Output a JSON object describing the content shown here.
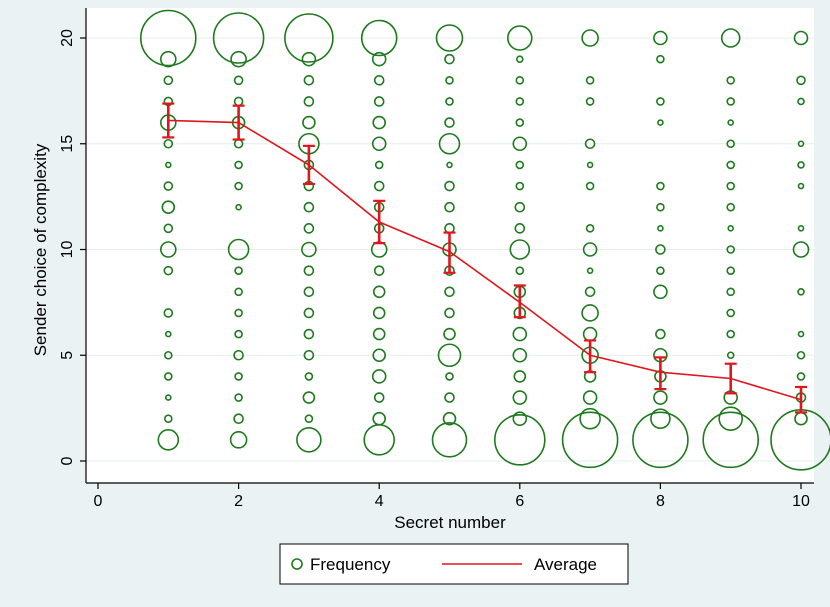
{
  "chart_data": {
    "type": "scatter",
    "title": "",
    "xlabel": "Secret number",
    "ylabel": "Sender choice of complexity",
    "xlim": [
      0,
      10
    ],
    "ylim": [
      0,
      20
    ],
    "xticks": [
      0,
      2,
      4,
      6,
      8,
      10
    ],
    "yticks": [
      0,
      5,
      10,
      15,
      20
    ],
    "grid": "horizontal",
    "legend_position": "bottom",
    "colors": {
      "frequency": "#1E7A1E",
      "average": "#E0161C",
      "plot_background": "#FFFFFF",
      "outer_background": "#EAF2F3",
      "grid": "#E6EDEE"
    },
    "legend": [
      "Frequency",
      "Average"
    ],
    "frequency_points": [
      {
        "x": 1,
        "points": [
          [
            1,
            20,
            5.5
          ],
          [
            1,
            19,
            1.5
          ],
          [
            1,
            18,
            0.8
          ],
          [
            1,
            17,
            0.8
          ],
          [
            1,
            16,
            1.5
          ],
          [
            1,
            15,
            0.8
          ],
          [
            1,
            14,
            0.5
          ],
          [
            1,
            13,
            0.8
          ],
          [
            1,
            12,
            1.2
          ],
          [
            1,
            11,
            0.8
          ],
          [
            1,
            10,
            1.5
          ],
          [
            1,
            9,
            0.8
          ],
          [
            1,
            7,
            0.8
          ],
          [
            1,
            6,
            0.5
          ],
          [
            1,
            5,
            0.7
          ],
          [
            1,
            4,
            0.7
          ],
          [
            1,
            3,
            0.5
          ],
          [
            1,
            2,
            0.7
          ],
          [
            1,
            1,
            2.0
          ]
        ]
      },
      {
        "x": 2,
        "points": [
          [
            2,
            20,
            5.0
          ],
          [
            2,
            19,
            1.5
          ],
          [
            2,
            18,
            0.8
          ],
          [
            2,
            17,
            0.8
          ],
          [
            2,
            16,
            1.2
          ],
          [
            2,
            15,
            0.8
          ],
          [
            2,
            14,
            0.7
          ],
          [
            2,
            13,
            0.7
          ],
          [
            2,
            12,
            0.5
          ],
          [
            2,
            10,
            2.0
          ],
          [
            2,
            9,
            0.7
          ],
          [
            2,
            8,
            0.7
          ],
          [
            2,
            7,
            0.7
          ],
          [
            2,
            6,
            0.7
          ],
          [
            2,
            5,
            0.9
          ],
          [
            2,
            4,
            0.7
          ],
          [
            2,
            3,
            0.7
          ],
          [
            2,
            2,
            0.9
          ],
          [
            2,
            1,
            1.6
          ]
        ]
      },
      {
        "x": 3,
        "points": [
          [
            3,
            20,
            4.8
          ],
          [
            3,
            19,
            1.3
          ],
          [
            3,
            18,
            0.9
          ],
          [
            3,
            17,
            0.9
          ],
          [
            3,
            16,
            1.2
          ],
          [
            3,
            15,
            2.0
          ],
          [
            3,
            14,
            0.9
          ],
          [
            3,
            13,
            0.9
          ],
          [
            3,
            12,
            0.9
          ],
          [
            3,
            11,
            0.9
          ],
          [
            3,
            10,
            1.4
          ],
          [
            3,
            9,
            0.9
          ],
          [
            3,
            8,
            0.9
          ],
          [
            3,
            7,
            0.9
          ],
          [
            3,
            6,
            0.9
          ],
          [
            3,
            5,
            0.9
          ],
          [
            3,
            4,
            0.7
          ],
          [
            3,
            3,
            1.1
          ],
          [
            3,
            2,
            0.7
          ],
          [
            3,
            1,
            2.4
          ]
        ]
      },
      {
        "x": 4,
        "points": [
          [
            4,
            20,
            3.5
          ],
          [
            4,
            19,
            1.3
          ],
          [
            4,
            18,
            0.9
          ],
          [
            4,
            17,
            0.9
          ],
          [
            4,
            16,
            1.2
          ],
          [
            4,
            15,
            1.3
          ],
          [
            4,
            14,
            0.7
          ],
          [
            4,
            13,
            0.9
          ],
          [
            4,
            12,
            0.9
          ],
          [
            4,
            11,
            0.9
          ],
          [
            4,
            10,
            1.5
          ],
          [
            4,
            9,
            0.9
          ],
          [
            4,
            8,
            1.1
          ],
          [
            4,
            7,
            1.1
          ],
          [
            4,
            6,
            1.1
          ],
          [
            4,
            5,
            1.2
          ],
          [
            4,
            4,
            1.3
          ],
          [
            4,
            3,
            0.9
          ],
          [
            4,
            2,
            1.2
          ],
          [
            4,
            1,
            3.0
          ]
        ]
      },
      {
        "x": 5,
        "points": [
          [
            5,
            20,
            2.6
          ],
          [
            5,
            19,
            0.9
          ],
          [
            5,
            18,
            0.7
          ],
          [
            5,
            17,
            0.7
          ],
          [
            5,
            16,
            0.9
          ],
          [
            5,
            15,
            2.0
          ],
          [
            5,
            14,
            0.5
          ],
          [
            5,
            13,
            0.9
          ],
          [
            5,
            12,
            0.9
          ],
          [
            5,
            11,
            0.9
          ],
          [
            5,
            10,
            1.3
          ],
          [
            5,
            9,
            0.9
          ],
          [
            5,
            8,
            0.9
          ],
          [
            5,
            7,
            0.9
          ],
          [
            5,
            6,
            1.1
          ],
          [
            5,
            5,
            2.2
          ],
          [
            5,
            4,
            0.7
          ],
          [
            5,
            3,
            0.9
          ],
          [
            5,
            2,
            1.2
          ],
          [
            5,
            1,
            3.4
          ]
        ]
      },
      {
        "x": 6,
        "points": [
          [
            6,
            20,
            2.4
          ],
          [
            6,
            19,
            0.6
          ],
          [
            6,
            18,
            0.7
          ],
          [
            6,
            17,
            0.7
          ],
          [
            6,
            16,
            0.7
          ],
          [
            6,
            15,
            1.3
          ],
          [
            6,
            14,
            0.7
          ],
          [
            6,
            13,
            0.7
          ],
          [
            6,
            12,
            0.9
          ],
          [
            6,
            11,
            0.9
          ],
          [
            6,
            10,
            1.9
          ],
          [
            6,
            9,
            0.7
          ],
          [
            6,
            8,
            1.1
          ],
          [
            6,
            7,
            1.1
          ],
          [
            6,
            6,
            1.3
          ],
          [
            6,
            5,
            1.3
          ],
          [
            6,
            4,
            1.1
          ],
          [
            6,
            3,
            1.3
          ],
          [
            6,
            2,
            1.3
          ],
          [
            6,
            1,
            5.0
          ]
        ]
      },
      {
        "x": 7,
        "points": [
          [
            7,
            20,
            1.6
          ],
          [
            7,
            18,
            0.7
          ],
          [
            7,
            17,
            0.7
          ],
          [
            7,
            15,
            0.9
          ],
          [
            7,
            14,
            0.5
          ],
          [
            7,
            13,
            0.7
          ],
          [
            7,
            11,
            0.7
          ],
          [
            7,
            10,
            1.3
          ],
          [
            7,
            9,
            0.5
          ],
          [
            7,
            8,
            0.9
          ],
          [
            7,
            7,
            1.6
          ],
          [
            7,
            6,
            1.3
          ],
          [
            7,
            5,
            1.6
          ],
          [
            7,
            4,
            1.1
          ],
          [
            7,
            3,
            1.3
          ],
          [
            7,
            2,
            2.0
          ],
          [
            7,
            1,
            5.5
          ]
        ]
      },
      {
        "x": 8,
        "points": [
          [
            8,
            20,
            1.3
          ],
          [
            8,
            19,
            0.7
          ],
          [
            8,
            17,
            0.7
          ],
          [
            8,
            16,
            0.5
          ],
          [
            8,
            13,
            0.7
          ],
          [
            8,
            12,
            0.7
          ],
          [
            8,
            11,
            0.5
          ],
          [
            8,
            10,
            0.9
          ],
          [
            8,
            9,
            0.7
          ],
          [
            8,
            8,
            1.3
          ],
          [
            8,
            6,
            0.9
          ],
          [
            8,
            5,
            1.3
          ],
          [
            8,
            4,
            1.1
          ],
          [
            8,
            3,
            1.3
          ],
          [
            8,
            2,
            1.9
          ],
          [
            8,
            1,
            5.5
          ]
        ]
      },
      {
        "x": 9,
        "points": [
          [
            9,
            20,
            1.8
          ],
          [
            9,
            18,
            0.7
          ],
          [
            9,
            17,
            0.7
          ],
          [
            9,
            16,
            0.5
          ],
          [
            9,
            15,
            0.7
          ],
          [
            9,
            14,
            0.7
          ],
          [
            9,
            13,
            0.7
          ],
          [
            9,
            12,
            0.7
          ],
          [
            9,
            11,
            0.5
          ],
          [
            9,
            10,
            0.7
          ],
          [
            9,
            9,
            0.7
          ],
          [
            9,
            8,
            0.7
          ],
          [
            9,
            7,
            0.7
          ],
          [
            9,
            6,
            0.7
          ],
          [
            9,
            5,
            0.6
          ],
          [
            9,
            3,
            1.3
          ],
          [
            9,
            2,
            2.3
          ],
          [
            9,
            1,
            5.5
          ]
        ]
      },
      {
        "x": 10,
        "points": [
          [
            10,
            20,
            1.3
          ],
          [
            10,
            18,
            0.8
          ],
          [
            10,
            17,
            0.6
          ],
          [
            10,
            15,
            0.5
          ],
          [
            10,
            14,
            0.6
          ],
          [
            10,
            13,
            0.5
          ],
          [
            10,
            11,
            0.5
          ],
          [
            10,
            10,
            1.5
          ],
          [
            10,
            8,
            0.6
          ],
          [
            10,
            6,
            0.5
          ],
          [
            10,
            5,
            0.7
          ],
          [
            10,
            4,
            0.7
          ],
          [
            10,
            3,
            0.9
          ],
          [
            10,
            2,
            1.2
          ],
          [
            10,
            1,
            6.0
          ]
        ]
      }
    ],
    "average": {
      "name": "Average",
      "x": [
        1,
        2,
        3,
        4,
        5,
        6,
        7,
        8,
        9,
        10
      ],
      "y": [
        16.1,
        16.0,
        14.0,
        11.3,
        9.9,
        7.5,
        5.0,
        4.2,
        3.9,
        2.9
      ],
      "ci_low": [
        15.3,
        15.2,
        13.1,
        10.3,
        8.9,
        6.8,
        4.2,
        3.4,
        3.2,
        2.3
      ],
      "ci_high": [
        16.9,
        16.8,
        14.9,
        12.3,
        10.8,
        8.3,
        5.7,
        4.9,
        4.6,
        3.5
      ]
    }
  }
}
